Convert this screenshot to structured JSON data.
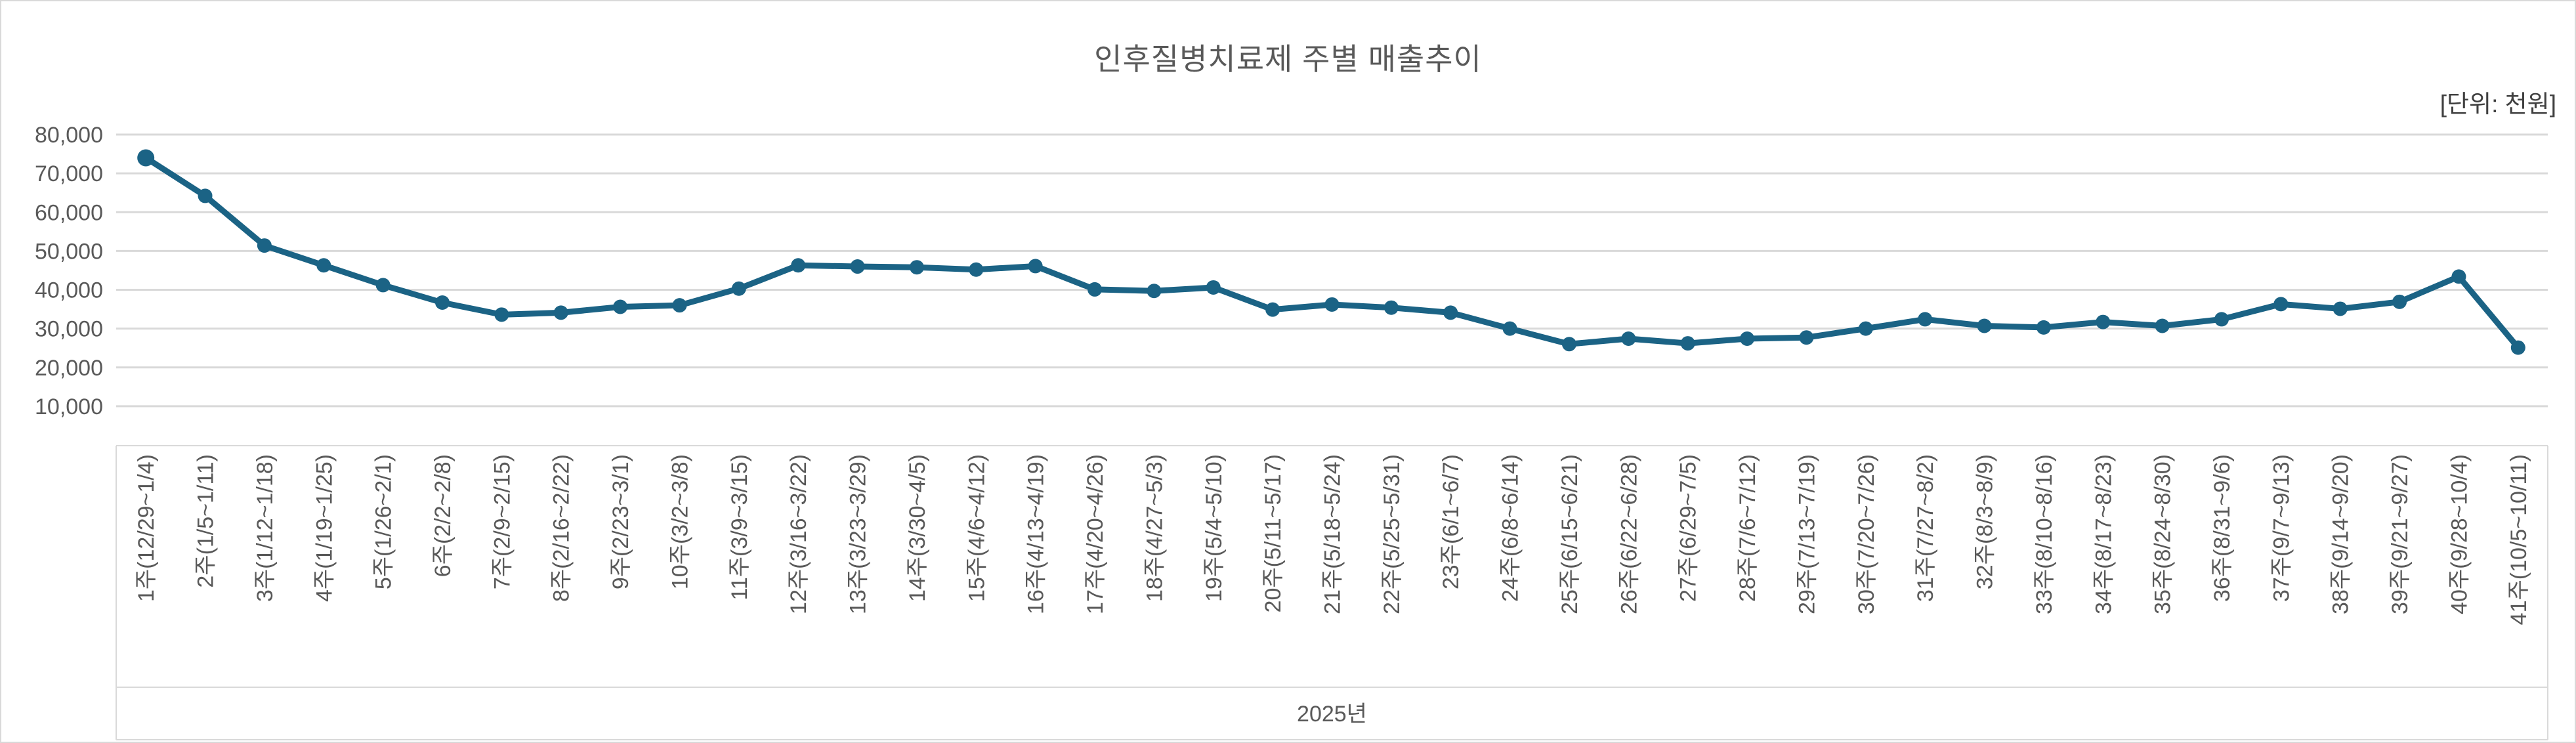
{
  "chart_data": {
    "type": "line",
    "title": "인후질병치료제 주별 매출추이",
    "unit_label": "[단위: 천원]",
    "x_group_label": "2025년",
    "categories": [
      "1주(12/29~1/4)",
      "2주(1/5~1/11)",
      "3주(1/12~1/18)",
      "4주(1/19~1/25)",
      "5주(1/26~2/1)",
      "6주(2/2~2/8)",
      "7주(2/9~2/15)",
      "8주(2/16~2/22)",
      "9주(2/23~3/1)",
      "10주(3/2~3/8)",
      "11주(3/9~3/15)",
      "12주(3/16~3/22)",
      "13주(3/23~3/29)",
      "14주(3/30~4/5)",
      "15주(4/6~4/12)",
      "16주(4/13~4/19)",
      "17주(4/20~4/26)",
      "18주(4/27~5/3)",
      "19주(5/4~5/10)",
      "20주(5/11~5/17)",
      "21주(5/18~5/24)",
      "22주(5/25~5/31)",
      "23주(6/1~6/7)",
      "24주(6/8~6/14)",
      "25주(6/15~6/21)",
      "26주(6/22~6/28)",
      "27주(6/29~7/5)",
      "28주(7/6~7/12)",
      "29주(7/13~7/19)",
      "30주(7/20~7/26)",
      "31주(7/27~8/2)",
      "32주(8/3~8/9)",
      "33주(8/10~8/16)",
      "34주(8/17~8/23)",
      "35주(8/24~8/30)",
      "36주(8/31~9/6)",
      "37주(9/7~9/13)",
      "38주(9/14~9/20)",
      "39주(9/21~9/27)",
      "40주(9/28~10/4)",
      "41주(10/5~10/11)"
    ],
    "values": [
      74000,
      64200,
      51400,
      46300,
      41200,
      36700,
      33600,
      34100,
      35600,
      36000,
      40300,
      46300,
      46000,
      45800,
      45200,
      46100,
      40100,
      39700,
      40600,
      34900,
      36200,
      35400,
      34100,
      30000,
      26000,
      27400,
      26200,
      27400,
      27700,
      30000,
      32400,
      30700,
      30300,
      31700,
      30700,
      32400,
      36300,
      35100,
      36900,
      43400,
      25100
    ],
    "y_ticks": [
      10000,
      20000,
      30000,
      40000,
      50000,
      60000,
      70000,
      80000
    ],
    "ylim": [
      0,
      80000
    ],
    "grid": true,
    "legend": false,
    "xlabel": "2025년",
    "ylabel": "",
    "colors": {
      "line": "#1b6385",
      "grid": "#d9d9d9",
      "axis_box": "#d9d9d9",
      "text": "#595959",
      "unit_text": "#404040"
    }
  }
}
